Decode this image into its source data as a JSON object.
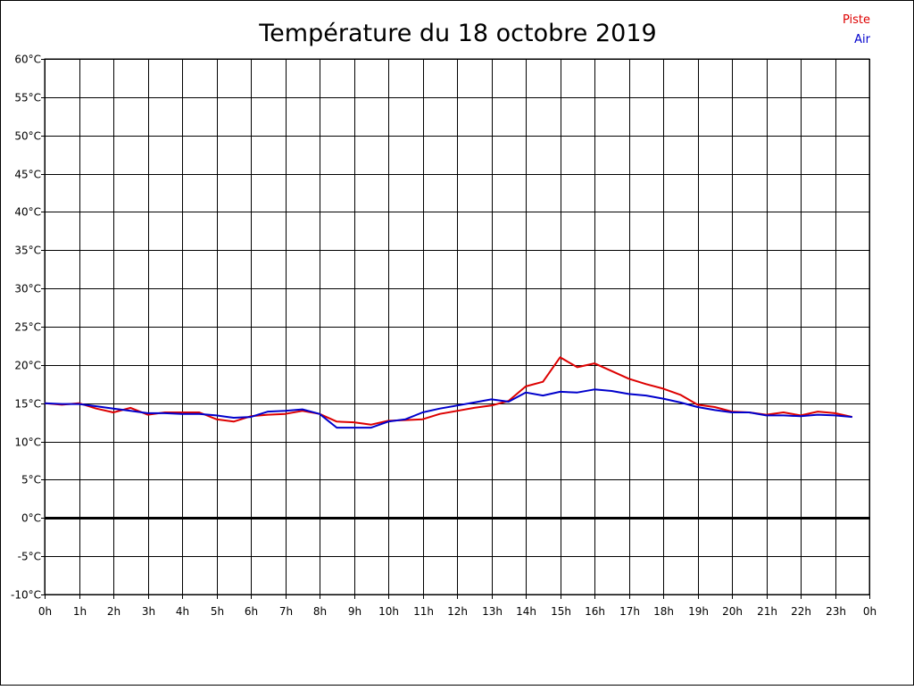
{
  "chart_data": {
    "type": "line",
    "title": "Température du 18 octobre 2019",
    "xlabel": "",
    "ylabel": "",
    "ylim": [
      -10,
      60
    ],
    "xlim": [
      0,
      24
    ],
    "grid": true,
    "legend_position": "top-right",
    "x_ticks": [
      "0h",
      "1h",
      "2h",
      "3h",
      "4h",
      "5h",
      "6h",
      "7h",
      "8h",
      "9h",
      "10h",
      "11h",
      "12h",
      "13h",
      "14h",
      "15h",
      "16h",
      "17h",
      "18h",
      "19h",
      "20h",
      "21h",
      "22h",
      "23h",
      "0h"
    ],
    "y_ticks": [
      "-10°C",
      "-5°C",
      "0°C",
      "5°C",
      "10°C",
      "15°C",
      "20°C",
      "25°C",
      "30°C",
      "35°C",
      "40°C",
      "45°C",
      "50°C",
      "55°C",
      "60°C"
    ],
    "x": [
      0,
      0.5,
      1,
      1.5,
      2,
      2.5,
      3,
      3.5,
      4,
      4.5,
      5,
      5.5,
      6,
      6.5,
      7,
      7.5,
      8,
      8.5,
      9,
      9.5,
      10,
      10.5,
      11,
      11.5,
      12,
      12.5,
      13,
      13.5,
      14,
      14.5,
      15,
      15.5,
      16,
      16.5,
      17,
      17.5,
      18,
      18.5,
      19,
      19.5,
      20,
      20.5,
      21,
      21.5,
      22,
      22.5,
      23,
      23.5
    ],
    "series": [
      {
        "name": "Piste",
        "color": "#dd0000",
        "values": [
          15.0,
          14.8,
          15.0,
          14.3,
          13.8,
          14.4,
          13.5,
          13.8,
          13.8,
          13.8,
          12.9,
          12.6,
          13.3,
          13.5,
          13.6,
          14.0,
          13.6,
          12.6,
          12.5,
          12.2,
          12.7,
          12.8,
          12.9,
          13.6,
          14.0,
          14.4,
          14.7,
          15.3,
          17.2,
          17.8,
          21.0,
          19.7,
          20.2,
          19.2,
          18.2,
          17.5,
          16.9,
          16.1,
          14.8,
          14.5,
          13.9,
          13.8,
          13.5,
          13.8,
          13.4,
          13.9,
          13.7,
          13.2
        ]
      },
      {
        "name": "Air",
        "color": "#0000cc",
        "values": [
          15.0,
          14.9,
          14.9,
          14.6,
          14.3,
          14.0,
          13.7,
          13.7,
          13.6,
          13.6,
          13.4,
          13.1,
          13.2,
          13.9,
          14.0,
          14.2,
          13.6,
          11.8,
          11.8,
          11.8,
          12.6,
          12.9,
          13.8,
          14.3,
          14.7,
          15.1,
          15.5,
          15.2,
          16.4,
          16.0,
          16.5,
          16.4,
          16.8,
          16.6,
          16.2,
          16.0,
          15.6,
          15.1,
          14.5,
          14.1,
          13.8,
          13.8,
          13.4,
          13.4,
          13.3,
          13.5,
          13.4,
          13.2
        ]
      }
    ]
  }
}
